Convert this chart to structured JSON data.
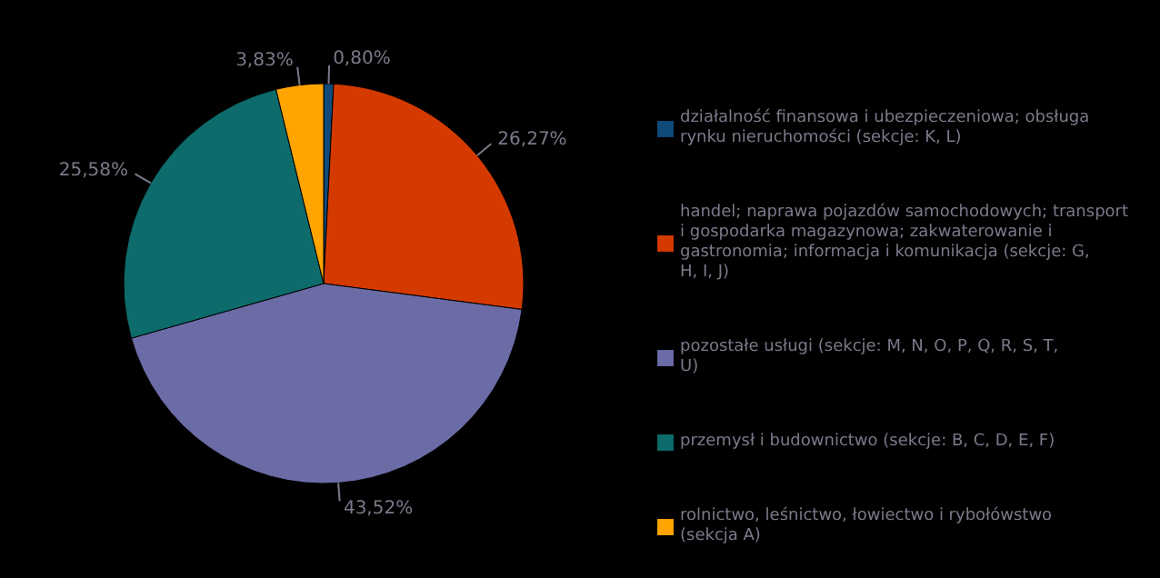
{
  "chart_data": {
    "type": "pie",
    "categories": [
      "działalność finansowa i ubezpieczeniowa; obsługa rynku nieruchomości (sekcje: K, L)",
      "handel; naprawa pojazdów samochodowych; transport i gospodarka magazynowa; zakwaterowanie i gastronomia; informacja i komunikacja (sekcje: G, H, I, J)",
      "pozostałe usługi (sekcje: M, N, O, P, Q, R, S, T, U)",
      "przemysł i budownictwo (sekcje: B, C, D, E, F)",
      "rolnictwo, leśnictwo, łowiectwo i rybołówstwo (sekcja A)"
    ],
    "values": [
      0.8,
      26.27,
      43.52,
      25.58,
      3.83
    ],
    "value_labels": [
      "0,80%",
      "26,27%",
      "43,52%",
      "25,58%",
      "3,83%"
    ],
    "colors": [
      "#0f4a7a",
      "#d43a00",
      "#6b6ba6",
      "#0d6b6b",
      "#ffa400"
    ],
    "legend": "right"
  }
}
